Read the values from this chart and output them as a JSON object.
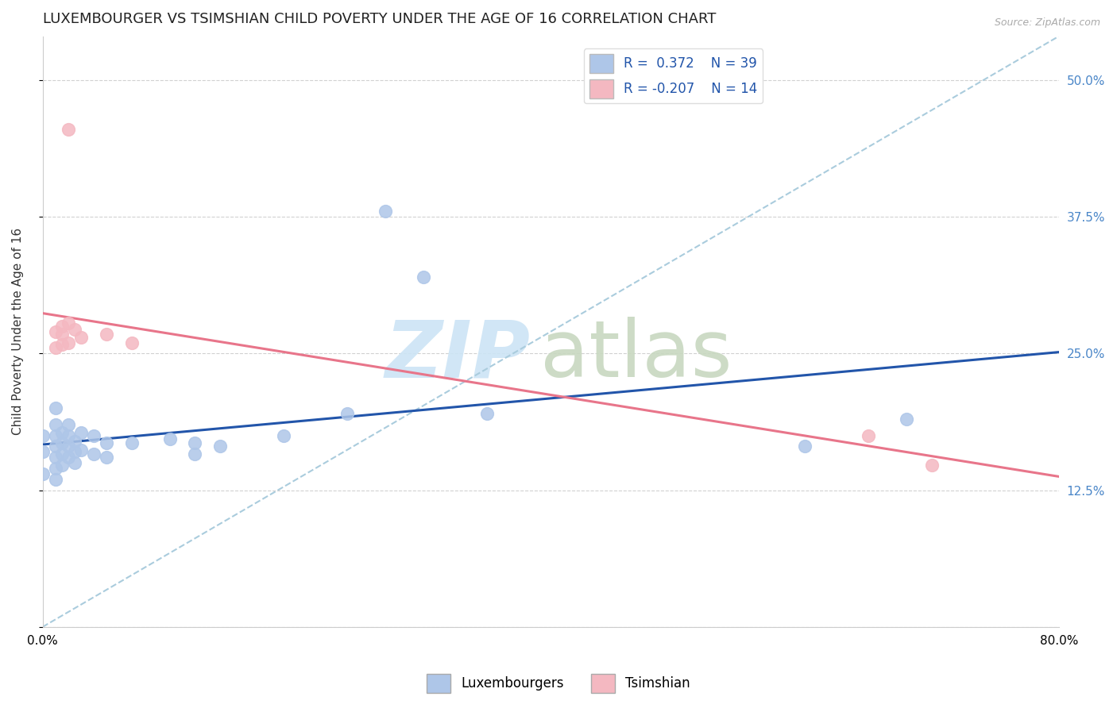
{
  "title": "LUXEMBOURGER VS TSIMSHIAN CHILD POVERTY UNDER THE AGE OF 16 CORRELATION CHART",
  "source": "Source: ZipAtlas.com",
  "ylabel": "Child Poverty Under the Age of 16",
  "xlabel": "",
  "xlim": [
    0.0,
    0.8
  ],
  "ylim": [
    0.0,
    0.54
  ],
  "xticks": [
    0.0,
    0.2,
    0.4,
    0.6,
    0.8
  ],
  "ytick_positions": [
    0.0,
    0.125,
    0.25,
    0.375,
    0.5
  ],
  "ytick_labels": [
    "",
    "12.5%",
    "25.0%",
    "37.5%",
    "50.0%"
  ],
  "R_lux": 0.372,
  "N_lux": 39,
  "R_tsi": -0.207,
  "N_tsi": 14,
  "lux_color": "#aec6e8",
  "tsi_color": "#f4b8c1",
  "lux_line_color": "#2255aa",
  "tsi_line_color": "#e8758a",
  "diag_line_color": "#aaccdd",
  "watermark_zip_color": "#cce4f5",
  "watermark_atlas_color": "#c8d8c0",
  "lux_scatter": [
    [
      0.0,
      0.175
    ],
    [
      0.0,
      0.16
    ],
    [
      0.0,
      0.14
    ],
    [
      0.01,
      0.2
    ],
    [
      0.01,
      0.185
    ],
    [
      0.01,
      0.175
    ],
    [
      0.01,
      0.165
    ],
    [
      0.01,
      0.155
    ],
    [
      0.01,
      0.145
    ],
    [
      0.01,
      0.135
    ],
    [
      0.015,
      0.178
    ],
    [
      0.015,
      0.168
    ],
    [
      0.015,
      0.158
    ],
    [
      0.015,
      0.148
    ],
    [
      0.02,
      0.185
    ],
    [
      0.02,
      0.175
    ],
    [
      0.02,
      0.165
    ],
    [
      0.02,
      0.155
    ],
    [
      0.025,
      0.17
    ],
    [
      0.025,
      0.16
    ],
    [
      0.025,
      0.15
    ],
    [
      0.03,
      0.178
    ],
    [
      0.03,
      0.162
    ],
    [
      0.04,
      0.175
    ],
    [
      0.04,
      0.158
    ],
    [
      0.05,
      0.168
    ],
    [
      0.05,
      0.155
    ],
    [
      0.07,
      0.168
    ],
    [
      0.1,
      0.172
    ],
    [
      0.12,
      0.168
    ],
    [
      0.12,
      0.158
    ],
    [
      0.14,
      0.165
    ],
    [
      0.19,
      0.175
    ],
    [
      0.24,
      0.195
    ],
    [
      0.27,
      0.38
    ],
    [
      0.3,
      0.32
    ],
    [
      0.35,
      0.195
    ],
    [
      0.6,
      0.165
    ],
    [
      0.68,
      0.19
    ]
  ],
  "tsi_scatter": [
    [
      0.01,
      0.27
    ],
    [
      0.01,
      0.255
    ],
    [
      0.015,
      0.275
    ],
    [
      0.015,
      0.268
    ],
    [
      0.015,
      0.258
    ],
    [
      0.02,
      0.278
    ],
    [
      0.02,
      0.26
    ],
    [
      0.025,
      0.272
    ],
    [
      0.03,
      0.265
    ],
    [
      0.05,
      0.268
    ],
    [
      0.07,
      0.26
    ],
    [
      0.02,
      0.455
    ],
    [
      0.65,
      0.175
    ],
    [
      0.7,
      0.148
    ]
  ],
  "background_color": "#ffffff",
  "plot_bg_color": "#ffffff",
  "grid_color": "#cccccc",
  "title_fontsize": 13,
  "axis_label_fontsize": 11,
  "tick_fontsize": 11,
  "legend_fontsize": 12,
  "marker_size": 130
}
